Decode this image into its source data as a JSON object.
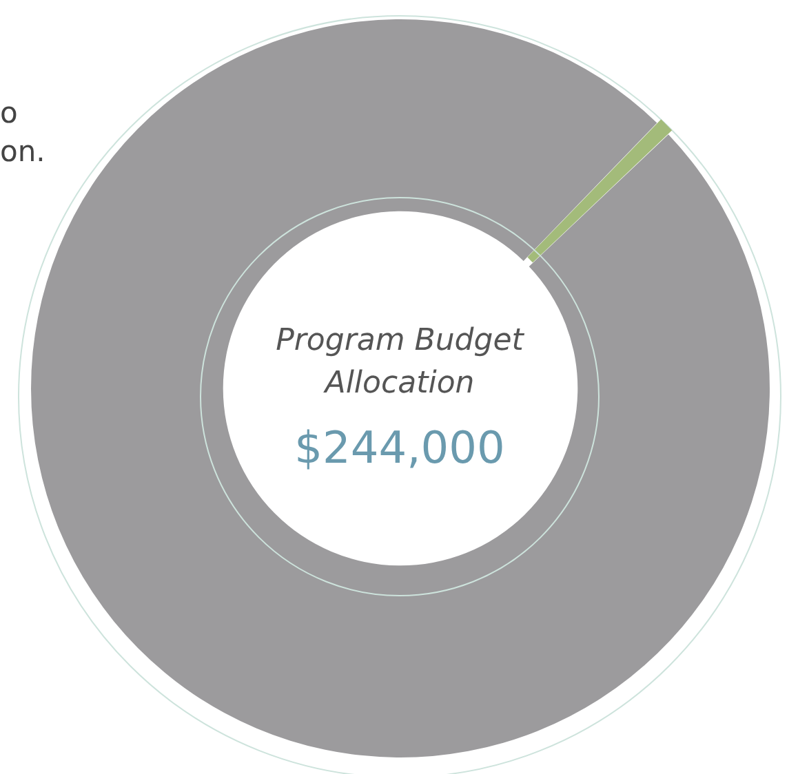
{
  "chart_data": {
    "type": "donut",
    "title": "Program Budget Allocation",
    "subtitle": "$244,000",
    "categories": [
      null,
      null
    ],
    "values": [
      0.7,
      99.3
    ],
    "colors": [
      "#a3bb7a",
      "#9c9b9d"
    ],
    "annotations": [
      "o",
      "on."
    ],
    "legend": false
  }
}
